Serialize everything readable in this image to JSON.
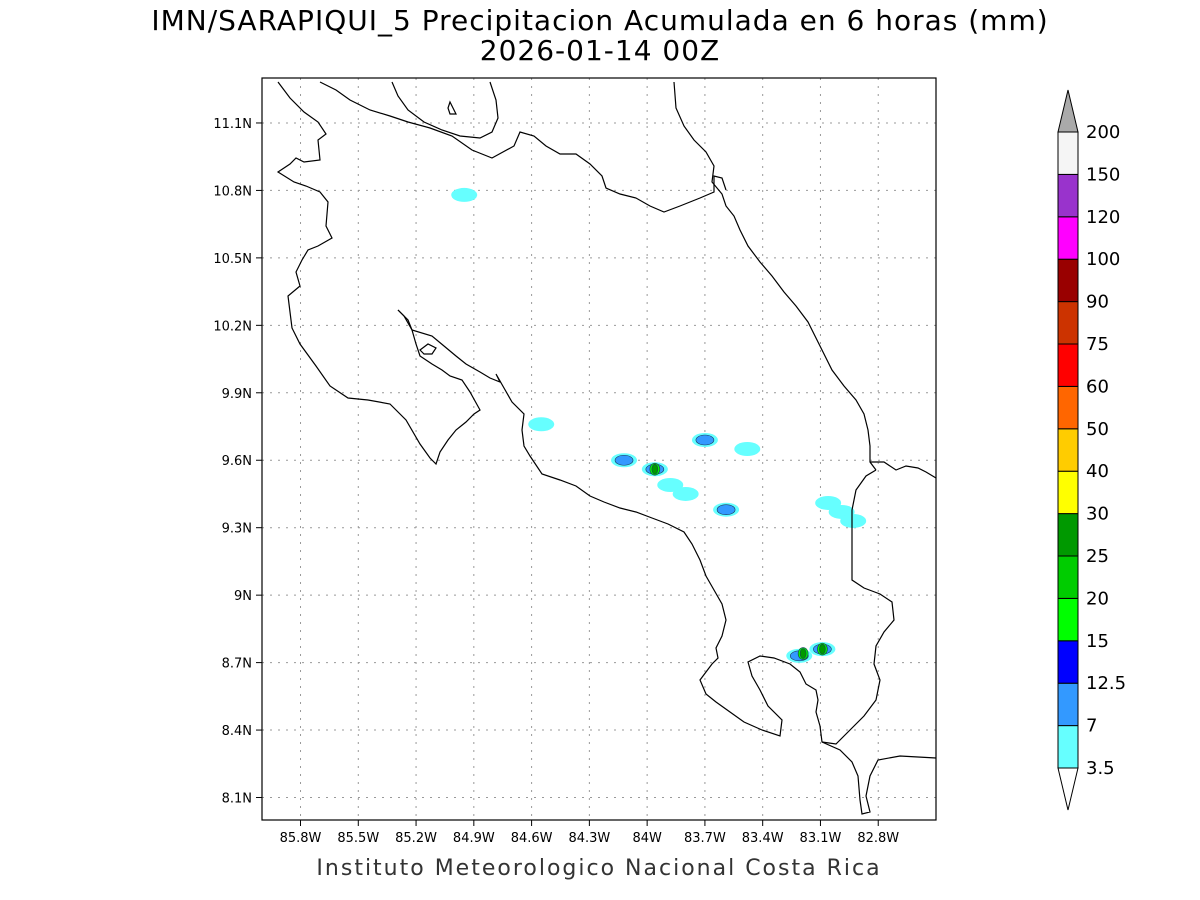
{
  "title": {
    "line1": "IMN/SARAPIQUI_5 Precipitacion Acumulada en 6 horas (mm)",
    "line2": "2026-01-14 00Z"
  },
  "footer": "Instituto Meteorologico Nacional Costa Rica",
  "map": {
    "lon_range": [
      -86.0,
      -82.5
    ],
    "lat_range": [
      8.0,
      11.3
    ],
    "lon_ticks": [
      {
        "v": -85.8,
        "label": "85.8W"
      },
      {
        "v": -85.5,
        "label": "85.5W"
      },
      {
        "v": -85.2,
        "label": "85.2W"
      },
      {
        "v": -84.9,
        "label": "84.9W"
      },
      {
        "v": -84.6,
        "label": "84.6W"
      },
      {
        "v": -84.3,
        "label": "84.3W"
      },
      {
        "v": -84.0,
        "label": "84W"
      },
      {
        "v": -83.7,
        "label": "83.7W"
      },
      {
        "v": -83.4,
        "label": "83.4W"
      },
      {
        "v": -83.1,
        "label": "83.1W"
      },
      {
        "v": -82.8,
        "label": "82.8W"
      }
    ],
    "lat_ticks": [
      {
        "v": 11.1,
        "label": "11.1N"
      },
      {
        "v": 10.8,
        "label": "10.8N"
      },
      {
        "v": 10.5,
        "label": "10.5N"
      },
      {
        "v": 10.2,
        "label": "10.2N"
      },
      {
        "v": 9.9,
        "label": "9.9N"
      },
      {
        "v": 9.6,
        "label": "9.6N"
      },
      {
        "v": 9.3,
        "label": "9.3N"
      },
      {
        "v": 9.0,
        "label": "9N"
      },
      {
        "v": 8.7,
        "label": "8.7N"
      },
      {
        "v": 8.4,
        "label": "8.4N"
      },
      {
        "v": 8.1,
        "label": "8.1N"
      }
    ],
    "grid": true,
    "precip_cells": [
      {
        "lon": -84.95,
        "lat": 10.78,
        "level": "3.5"
      },
      {
        "lon": -84.55,
        "lat": 9.76,
        "level": "3.5"
      },
      {
        "lon": -84.12,
        "lat": 9.6,
        "level": "3.5"
      },
      {
        "lon": -84.12,
        "lat": 9.6,
        "level": "7"
      },
      {
        "lon": -83.96,
        "lat": 9.56,
        "level": "3.5"
      },
      {
        "lon": -83.96,
        "lat": 9.56,
        "level": "7"
      },
      {
        "lon": -83.96,
        "lat": 9.56,
        "level": "15"
      },
      {
        "lon": -83.96,
        "lat": 9.56,
        "level": "25"
      },
      {
        "lon": -83.7,
        "lat": 9.69,
        "level": "3.5"
      },
      {
        "lon": -83.7,
        "lat": 9.69,
        "level": "7"
      },
      {
        "lon": -83.88,
        "lat": 9.49,
        "level": "3.5"
      },
      {
        "lon": -83.8,
        "lat": 9.45,
        "level": "3.5"
      },
      {
        "lon": -83.59,
        "lat": 9.38,
        "level": "3.5"
      },
      {
        "lon": -83.59,
        "lat": 9.38,
        "level": "7"
      },
      {
        "lon": -83.06,
        "lat": 9.41,
        "level": "3.5"
      },
      {
        "lon": -82.99,
        "lat": 9.37,
        "level": "3.5"
      },
      {
        "lon": -82.93,
        "lat": 9.33,
        "level": "3.5"
      },
      {
        "lon": -83.48,
        "lat": 9.65,
        "level": "3.5"
      },
      {
        "lon": -83.21,
        "lat": 8.73,
        "level": "3.5"
      },
      {
        "lon": -83.21,
        "lat": 8.73,
        "level": "7"
      },
      {
        "lon": -83.19,
        "lat": 8.74,
        "level": "15"
      },
      {
        "lon": -83.19,
        "lat": 8.74,
        "level": "25"
      },
      {
        "lon": -83.09,
        "lat": 8.76,
        "level": "3.5"
      },
      {
        "lon": -83.09,
        "lat": 8.76,
        "level": "7"
      },
      {
        "lon": -83.09,
        "lat": 8.76,
        "level": "15"
      },
      {
        "lon": -83.09,
        "lat": 8.76,
        "level": "25"
      }
    ]
  },
  "colorbar": {
    "levels": [
      {
        "label": "3.5",
        "color": "#66ffff"
      },
      {
        "label": "7",
        "color": "#3399ff"
      },
      {
        "label": "12.5",
        "color": "#0000ff"
      },
      {
        "label": "15",
        "color": "#00ff00"
      },
      {
        "label": "20",
        "color": "#00cc00"
      },
      {
        "label": "25",
        "color": "#009900"
      },
      {
        "label": "30",
        "color": "#ffff00"
      },
      {
        "label": "40",
        "color": "#ffcc00"
      },
      {
        "label": "50",
        "color": "#ff6600"
      },
      {
        "label": "60",
        "color": "#ff0000"
      },
      {
        "label": "75",
        "color": "#cc3300"
      },
      {
        "label": "90",
        "color": "#990000"
      },
      {
        "label": "100",
        "color": "#ff00ff"
      },
      {
        "label": "120",
        "color": "#9933cc"
      },
      {
        "label": "150",
        "color": "#f5f5f5"
      },
      {
        "label": "200",
        "color": "#aaaaaa"
      }
    ]
  }
}
